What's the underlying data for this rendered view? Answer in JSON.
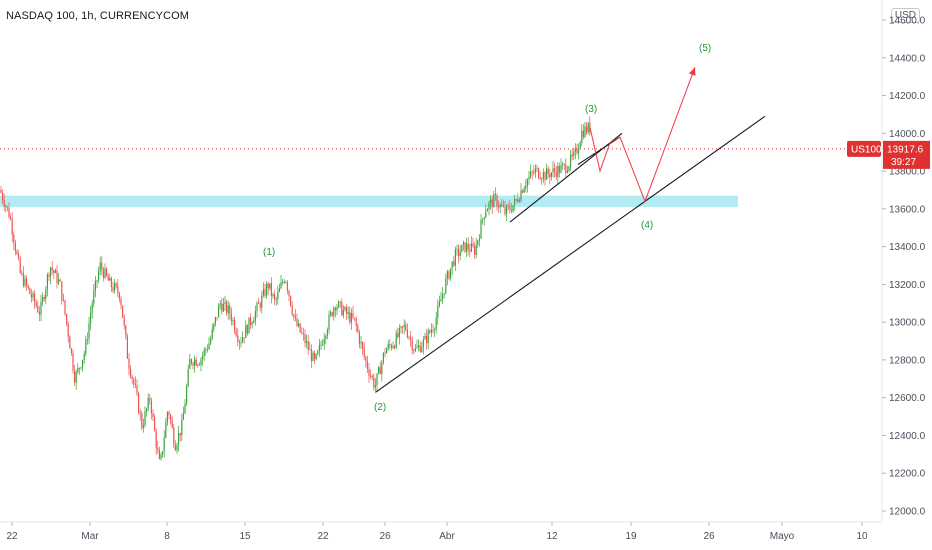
{
  "header": {
    "title": "NASDAQ 100, 1h, CURRENCYCOM",
    "currency_button": "USD"
  },
  "colors": {
    "up": "#26a69a",
    "up_green": "#3aa33a",
    "down": "#ef5350",
    "support_zone": "#b2ebf2",
    "trendline": "#131722",
    "projection": "#f23645",
    "wave_label": "#1e9a36",
    "price_tag": "#e03131",
    "dotted_price_line": "#e03131"
  },
  "price_tag": {
    "symbol": "US100",
    "price": "13917.6",
    "countdown": "39:27"
  },
  "chart_data": {
    "type": "line",
    "title": "NASDAQ 100, 1h, CURRENCYCOM",
    "xlabel": "",
    "ylabel": "",
    "x_ticks": [
      "22",
      "Mar",
      "8",
      "15",
      "22",
      "26",
      "Abr",
      "12",
      "19",
      "26",
      "Mayo",
      "10"
    ],
    "y_ticks": [
      "14600.0",
      "14400.0",
      "14200.0",
      "14000.0",
      "13800.0",
      "13600.0",
      "13400.0",
      "13200.0",
      "13000.0",
      "12800.0",
      "12600.0",
      "12400.0",
      "12200.0",
      "12000.0"
    ],
    "ylim": [
      11950,
      14650
    ],
    "grid": false,
    "current_price": 13917.6,
    "support_zone": [
      13610,
      13670
    ],
    "series": [
      {
        "values": [
          [
            0,
            13700
          ],
          [
            10,
            13560
          ],
          [
            20,
            13260
          ],
          [
            30,
            13150
          ],
          [
            40,
            13050
          ],
          [
            50,
            13300
          ],
          [
            60,
            13200
          ],
          [
            68,
            12950
          ],
          [
            75,
            12700
          ],
          [
            85,
            12850
          ],
          [
            92,
            13100
          ],
          [
            100,
            13300
          ],
          [
            110,
            13200
          ],
          [
            120,
            13150
          ],
          [
            128,
            12800
          ],
          [
            135,
            12650
          ],
          [
            142,
            12450
          ],
          [
            150,
            12600
          ],
          [
            155,
            12400
          ],
          [
            160,
            12230
          ],
          [
            168,
            12550
          ],
          [
            175,
            12350
          ],
          [
            182,
            12450
          ],
          [
            190,
            12800
          ],
          [
            200,
            12800
          ],
          [
            210,
            12900
          ],
          [
            220,
            13100
          ],
          [
            230,
            13050
          ],
          [
            240,
            12900
          ],
          [
            250,
            13000
          ],
          [
            260,
            13100
          ],
          [
            268,
            13200
          ],
          [
            275,
            13100
          ],
          [
            285,
            13250
          ],
          [
            295,
            13000
          ],
          [
            305,
            12900
          ],
          [
            315,
            12780
          ],
          [
            325,
            12950
          ],
          [
            335,
            13100
          ],
          [
            345,
            13050
          ],
          [
            355,
            13000
          ],
          [
            365,
            12800
          ],
          [
            375,
            12660
          ],
          [
            385,
            12850
          ],
          [
            395,
            12900
          ],
          [
            405,
            12980
          ],
          [
            415,
            12850
          ],
          [
            425,
            12900
          ],
          [
            435,
            13000
          ],
          [
            445,
            13200
          ],
          [
            455,
            13350
          ],
          [
            465,
            13400
          ],
          [
            475,
            13380
          ],
          [
            485,
            13600
          ],
          [
            495,
            13650
          ],
          [
            505,
            13580
          ],
          [
            515,
            13630
          ],
          [
            525,
            13740
          ],
          [
            535,
            13800
          ],
          [
            545,
            13780
          ],
          [
            555,
            13800
          ],
          [
            565,
            13820
          ],
          [
            575,
            13880
          ],
          [
            582,
            14010
          ],
          [
            590,
            14030
          ]
        ]
      },
      {
        "values": [
          [
            590,
            14030
          ],
          [
            600,
            13800
          ],
          [
            610,
            13950
          ],
          [
            620,
            13980
          ],
          [
            645,
            13640
          ],
          [
            695,
            14350
          ]
        ]
      }
    ],
    "trendlines": [
      [
        [
          376,
          12630
        ],
        [
          765,
          14090
        ]
      ],
      [
        [
          510,
          13530
        ],
        [
          622,
          14000
        ]
      ],
      [
        [
          578,
          13835
        ],
        [
          620,
          13980
        ]
      ]
    ],
    "annotations": [
      "(1)",
      "(2)",
      "(3)",
      "(4)",
      "(5)"
    ]
  }
}
